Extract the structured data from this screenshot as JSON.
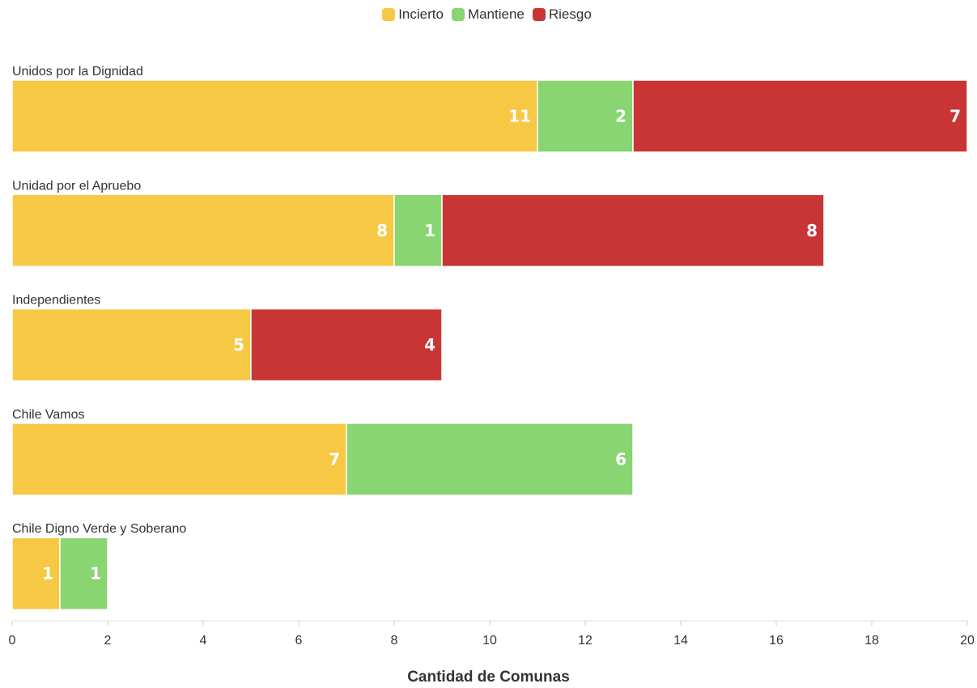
{
  "chart_data": {
    "type": "bar",
    "orientation": "horizontal",
    "stacked": true,
    "categories": [
      "Unidos por la Dignidad",
      "Unidad por el Apruebo",
      "Independientes",
      "Chile Vamos",
      "Chile Digno Verde y Soberano"
    ],
    "series": [
      {
        "name": "Incierto",
        "color": "#f7c843",
        "values": [
          11,
          8,
          5,
          7,
          1
        ]
      },
      {
        "name": "Mantiene",
        "color": "#88d571",
        "values": [
          2,
          1,
          0,
          6,
          1
        ]
      },
      {
        "name": "Riesgo",
        "color": "#c93535",
        "values": [
          7,
          8,
          4,
          0,
          0
        ]
      }
    ],
    "xlabel": "Cantidad de Comunas",
    "xlim": [
      0,
      20
    ],
    "xticks": [
      0,
      2,
      4,
      6,
      8,
      10,
      12,
      14,
      16,
      18,
      20
    ],
    "legend_position": "top-center",
    "grid": false
  }
}
